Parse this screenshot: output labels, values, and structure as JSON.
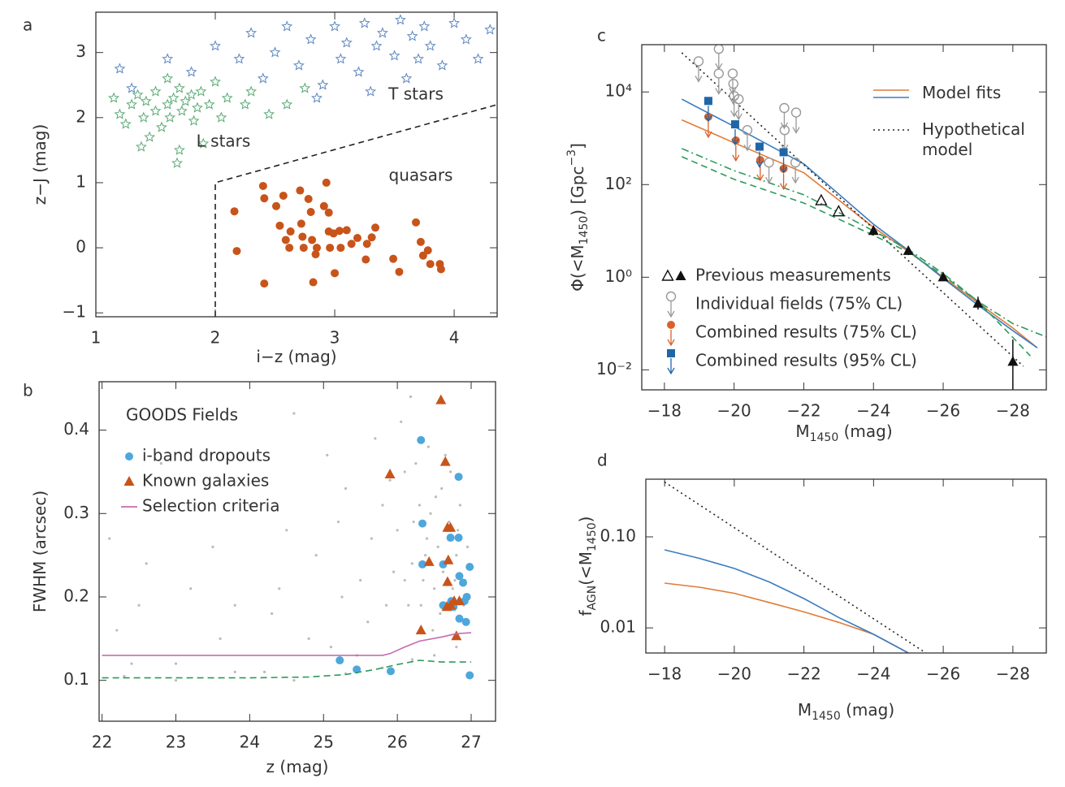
{
  "chart_data": [
    {
      "type": "scatter",
      "panel": "a",
      "xlabel": [
        "i−z (mag)"
      ],
      "ylabel": [
        "z−J (mag)"
      ],
      "xlim": [
        1,
        4.36
      ],
      "ylim": [
        -1.06,
        3.62
      ],
      "xticks": [
        1,
        2,
        3,
        4
      ],
      "yticks": [
        {
          "value": -1,
          "label": "−1"
        },
        0,
        1,
        2,
        3
      ],
      "legend": "inline",
      "boundary": {
        "x": [
          2,
          2,
          4.36
        ],
        "y": [
          -1.06,
          1.0,
          2.2
        ],
        "color": "#222222"
      },
      "series": [
        {
          "name": "L stars",
          "color": "#5aaa74",
          "marker": "star",
          "x": [
            1.15,
            1.2,
            1.25,
            1.3,
            1.35,
            1.4,
            1.42,
            1.45,
            1.5,
            1.5,
            1.55,
            1.6,
            1.62,
            1.65,
            1.7,
            1.7,
            1.72,
            1.75,
            1.8,
            1.82,
            1.85,
            1.88,
            1.9,
            1.95,
            2.0,
            2.05,
            2.1,
            1.68,
            1.38,
            2.25,
            2.3,
            2.45,
            2.6,
            2.75,
            1.6
          ],
          "values": [
            2.3,
            2.05,
            1.9,
            2.2,
            2.35,
            2.0,
            2.25,
            1.7,
            2.1,
            2.4,
            1.85,
            2.2,
            2.0,
            2.3,
            2.45,
            1.5,
            2.1,
            2.25,
            2.35,
            1.95,
            2.15,
            2.4,
            1.6,
            2.2,
            2.55,
            2.0,
            2.3,
            1.3,
            1.55,
            2.2,
            2.4,
            2.05,
            2.2,
            2.45,
            2.6
          ]
        },
        {
          "name": "T stars",
          "color": "#5b86c0",
          "marker": "star",
          "x": [
            1.2,
            1.3,
            1.6,
            1.8,
            2.0,
            2.2,
            2.4,
            2.3,
            2.5,
            2.6,
            2.7,
            2.8,
            2.9,
            3.0,
            3.05,
            3.1,
            3.2,
            3.25,
            3.3,
            3.4,
            3.5,
            3.55,
            3.6,
            3.7,
            3.75,
            3.8,
            3.9,
            4.0,
            4.1,
            4.2,
            4.3,
            3.35,
            2.85,
            3.65
          ],
          "values": [
            2.75,
            2.45,
            2.9,
            2.7,
            3.1,
            2.9,
            2.6,
            3.3,
            3.0,
            3.4,
            2.8,
            3.2,
            2.5,
            3.4,
            2.9,
            3.15,
            2.7,
            3.45,
            2.4,
            3.3,
            2.95,
            3.5,
            2.6,
            2.9,
            3.4,
            3.1,
            2.8,
            3.45,
            3.2,
            2.9,
            3.35,
            3.1,
            2.3,
            3.25
          ]
        },
        {
          "name": "quasars",
          "color": "#c8541a",
          "marker": "circle",
          "x": [
            2.16,
            2.18,
            2.4,
            2.41,
            2.41,
            2.51,
            2.54,
            2.57,
            2.59,
            2.62,
            2.63,
            2.71,
            2.72,
            2.73,
            2.74,
            2.78,
            2.8,
            2.81,
            2.82,
            2.84,
            2.85,
            2.91,
            2.93,
            2.95,
            2.95,
            2.96,
            2.99,
            3.0,
            3.04,
            3.05,
            3.1,
            3.14,
            3.19,
            3.26,
            3.27,
            3.31,
            3.34,
            3.49,
            3.54,
            3.68,
            3.72,
            3.74,
            3.78,
            3.8,
            3.88,
            3.89
          ],
          "values": [
            0.56,
            -0.05,
            0.95,
            0.76,
            -0.55,
            0.64,
            0.34,
            0.8,
            0.12,
            0.0,
            0.25,
            0.88,
            0.37,
            0.17,
            0.0,
            0.75,
            0.55,
            0.12,
            -0.53,
            -0.1,
            0.0,
            0.64,
            1.0,
            0.54,
            0.25,
            0.0,
            0.22,
            -0.39,
            0.26,
            0.0,
            0.27,
            0.06,
            0.15,
            -0.18,
            0.06,
            0.16,
            0.31,
            -0.17,
            -0.37,
            0.39,
            0.09,
            -0.12,
            -0.04,
            -0.25,
            -0.25,
            -0.33
          ]
        }
      ]
    },
    {
      "type": "scatter",
      "panel": "b",
      "xlabel": [
        "z (mag)"
      ],
      "ylabel": [
        "FWHM (arcsec)"
      ],
      "xlim": [
        21.96,
        27.33
      ],
      "ylim": [
        0.051,
        0.458
      ],
      "xticks": [
        22,
        23,
        24,
        25,
        26,
        27
      ],
      "yticks": [
        0.1,
        0.2,
        0.3,
        0.4
      ],
      "legend": "upper left",
      "legend_title": "GOODS Fields",
      "series": [
        {
          "color": "#bbbbbb",
          "marker": "dot",
          "x": [
            22.1,
            22.4,
            22.8,
            23.2,
            23.6,
            24.0,
            24.3,
            24.6,
            24.9,
            25.1,
            25.3,
            25.5,
            25.7,
            25.85,
            26.0,
            26.1,
            26.2,
            26.3,
            26.4,
            26.5,
            26.6,
            26.7,
            26.8,
            26.9,
            22.2,
            22.6,
            23.0,
            23.4,
            23.8,
            24.2,
            24.5,
            24.8,
            25.05,
            25.25,
            25.45,
            25.65,
            25.8,
            25.95,
            26.05,
            26.15,
            26.25,
            26.35,
            26.45,
            26.55,
            26.65,
            26.75,
            26.85,
            26.95,
            22.5,
            23.5,
            24.4,
            25.2,
            25.6,
            25.9,
            26.1,
            26.22,
            26.32,
            26.42,
            26.52,
            26.62,
            26.72,
            26.82,
            26.92,
            26.18,
            26.38,
            26.58,
            26.78,
            26.48,
            22.3,
            23.0,
            23.8,
            24.6,
            25.3,
            25.8,
            26.2,
            26.5,
            26.8
          ],
          "values": [
            0.27,
            0.12,
            0.36,
            0.21,
            0.15,
            0.31,
            0.18,
            0.42,
            0.25,
            0.14,
            0.33,
            0.22,
            0.39,
            0.19,
            0.28,
            0.35,
            0.24,
            0.31,
            0.27,
            0.21,
            0.33,
            0.29,
            0.25,
            0.19,
            0.16,
            0.24,
            0.12,
            0.33,
            0.19,
            0.11,
            0.28,
            0.15,
            0.37,
            0.2,
            0.13,
            0.27,
            0.31,
            0.23,
            0.41,
            0.19,
            0.36,
            0.22,
            0.3,
            0.26,
            0.37,
            0.21,
            0.31,
            0.26,
            0.19,
            0.26,
            0.21,
            0.29,
            0.17,
            0.34,
            0.22,
            0.29,
            0.19,
            0.38,
            0.32,
            0.23,
            0.35,
            0.28,
            0.22,
            0.44,
            0.25,
            0.18,
            0.22,
            0.16,
            0.105,
            0.1,
            0.11,
            0.1,
            0.108,
            0.115,
            0.125,
            0.13,
            0.14
          ]
        },
        {
          "name": "i-band dropouts",
          "color": "#4ea7dc",
          "marker": "circle",
          "x": [
            25.22,
            25.45,
            25.91,
            26.32,
            26.34,
            26.34,
            26.62,
            26.62,
            26.72,
            26.73,
            26.83,
            26.83,
            26.84,
            26.89,
            26.91,
            26.93,
            26.94,
            26.98,
            26.98,
            26.76,
            26.84
          ],
          "values": [
            0.124,
            0.113,
            0.111,
            0.388,
            0.288,
            0.239,
            0.19,
            0.239,
            0.271,
            0.195,
            0.344,
            0.271,
            0.225,
            0.217,
            0.195,
            0.17,
            0.2,
            0.236,
            0.106,
            0.188,
            0.174
          ]
        },
        {
          "name": "Known galaxies",
          "color": "#c8541a",
          "marker": "triangle",
          "x": [
            25.9,
            26.32,
            26.43,
            26.59,
            26.65,
            26.68,
            26.69,
            26.72,
            26.68,
            26.67,
            26.77,
            26.84,
            26.8,
            26.72
          ],
          "values": [
            0.347,
            0.16,
            0.242,
            0.436,
            0.362,
            0.283,
            0.244,
            0.283,
            0.218,
            0.188,
            0.195,
            0.195,
            0.153,
            0.19
          ]
        },
        {
          "name": "Selection criteria",
          "color": "#c76bb0",
          "marker": "none",
          "dash": "solid",
          "x": [
            22,
            25.8,
            25.9,
            26.1,
            26.3,
            26.6,
            26.8,
            27
          ],
          "values": [
            0.13,
            0.13,
            0.132,
            0.14,
            0.147,
            0.152,
            0.156,
            0.157
          ]
        },
        {
          "color": "#2e9a5a",
          "marker": "none",
          "dash": "dashed",
          "x": [
            22,
            24,
            24.8,
            25.3,
            25.7,
            26.0,
            26.3,
            26.6,
            27
          ],
          "values": [
            0.103,
            0.103,
            0.104,
            0.107,
            0.113,
            0.119,
            0.124,
            0.122,
            0.122
          ]
        }
      ]
    },
    {
      "type": "line",
      "panel": "c",
      "xlabel": [
        "M",
        "1450",
        " (mag)"
      ],
      "ylabel": [
        "Φ(<M",
        "1450",
        ")  [Gpc",
        "−3",
        "]"
      ],
      "xlim": [
        -17.35,
        -28.96
      ],
      "ylim": [
        0.0037,
        105000
      ],
      "log_y": true,
      "xticks": [
        {
          "value": -18,
          "label": "−18"
        },
        {
          "value": -20,
          "label": "−20"
        },
        {
          "value": -22,
          "label": "−22"
        },
        {
          "value": -24,
          "label": "−24"
        },
        {
          "value": -26,
          "label": "−26"
        },
        {
          "value": -28,
          "label": "−28"
        }
      ],
      "yticks": [
        {
          "value": 0.01,
          "label": "10⁻²"
        },
        {
          "value": 1,
          "label": "10⁰"
        },
        {
          "value": 100,
          "label": "10²"
        },
        {
          "value": 10000,
          "label": "10⁴"
        }
      ],
      "series": [
        {
          "name": "Model fits",
          "color": "#e07b39",
          "marker": "none",
          "dash": "solid",
          "legend": "upper right",
          "x": [
            -18.5,
            -20,
            -22,
            -24,
            -25,
            -26,
            -27,
            -28,
            -28.7
          ],
          "values": [
            2500,
            800,
            180,
            12,
            3.6,
            1.0,
            0.28,
            0.08,
            0.03
          ]
        },
        {
          "color": "#3a7dc0",
          "marker": "none",
          "dash": "solid",
          "legend": "upper right",
          "x": [
            -18.5,
            -20,
            -22,
            -24,
            -25,
            -26,
            -27,
            -28,
            -28.7
          ],
          "values": [
            7000,
            1800,
            280,
            14,
            3.8,
            0.95,
            0.25,
            0.07,
            0.03
          ]
        },
        {
          "name": "Hypothetical model",
          "color": "#222222",
          "marker": "none",
          "dash": "dotted",
          "legend": "upper right",
          "x": [
            -18.5,
            -28.3
          ],
          "values": [
            70000,
            0.012
          ]
        },
        {
          "color": "#2e9a5a",
          "marker": "none",
          "dash": "dashed",
          "x": [
            -18.5,
            -20,
            -22,
            -23,
            -24,
            -25,
            -26,
            -27,
            -28,
            -28.5
          ],
          "values": [
            400,
            130,
            40,
            18,
            8,
            3.5,
            1.1,
            0.3,
            0.05,
            0.02
          ]
        },
        {
          "color": "#2e9a5a",
          "marker": "none",
          "dash": "dashdot",
          "x": [
            -18.5,
            -20,
            -22,
            -23,
            -24,
            -25,
            -26,
            -27,
            -28,
            -29
          ],
          "values": [
            600,
            200,
            60,
            25,
            10,
            4,
            1.2,
            0.3,
            0.1,
            0.05
          ]
        },
        {
          "name": "Previous measurements",
          "color": "#111111",
          "marker": "open-triangle",
          "legend": "lower left",
          "x": [
            -22.5,
            -23.0
          ],
          "values": [
            45,
            26
          ]
        },
        {
          "color": "#111111",
          "marker": "triangle",
          "legend": "lower left",
          "x": [
            -24,
            -25,
            -26,
            -27,
            -28
          ],
          "values": [
            10,
            3.7,
            1.0,
            0.27,
            0.015
          ],
          "error_low": [
            8,
            3,
            0.85,
            0.2,
            0.003
          ],
          "error_high": [
            13,
            4.6,
            1.2,
            0.38,
            0.045
          ]
        },
        {
          "name": "Individual fields (75% CL)",
          "color": "#999999",
          "marker": "open-circle",
          "limit": "upper",
          "legend": "lower left",
          "x": [
            -18.98,
            -19.56,
            -19.56,
            -19.96,
            -19.98,
            -20.0,
            -20.13,
            -20.38,
            -21.0,
            -21.44,
            -21.45,
            -21.78,
            -21.76
          ],
          "values": [
            46000,
            85000,
            25000,
            25000,
            15000,
            8200,
            7000,
            1500,
            300,
            4500,
            1500,
            3600,
            300
          ]
        },
        {
          "name": "Combined results (75% CL)",
          "color": "#d9622b",
          "marker": "circle",
          "limit": "upper",
          "legend": "lower left",
          "x": [
            -19.26,
            -20.05,
            -20.75,
            -21.42
          ],
          "values": [
            2900,
            900,
            340,
            220
          ]
        },
        {
          "name": "Combined results (95% CL)",
          "color": "#1f66a8",
          "marker": "square",
          "limit": "upper",
          "legend": "lower left",
          "x": [
            -19.26,
            -20.03,
            -20.73,
            -21.42
          ],
          "values": [
            6400,
            2000,
            660,
            500
          ]
        }
      ]
    },
    {
      "type": "line",
      "panel": "d",
      "xlabel": [
        "M",
        "1450",
        " (mag)"
      ],
      "ylabel": [
        "f",
        "AGN",
        "(<M",
        "1450",
        ")"
      ],
      "xlim": [
        -17.46,
        -28.96
      ],
      "ylim": [
        0.0053,
        0.43
      ],
      "log_y": true,
      "xticks": [
        {
          "value": -18,
          "label": "−18"
        },
        {
          "value": -20,
          "label": "−20"
        },
        {
          "value": -22,
          "label": "−22"
        },
        {
          "value": -24,
          "label": "−24"
        },
        {
          "value": -26,
          "label": "−26"
        },
        {
          "value": -28,
          "label": "−28"
        }
      ],
      "yticks": [
        0.01,
        {
          "value": 0.1,
          "label": "0.10"
        }
      ],
      "series": [
        {
          "color": "#e07b39",
          "marker": "none",
          "dash": "solid",
          "x": [
            -18,
            -19,
            -20,
            -21,
            -22,
            -23,
            -24,
            -25
          ],
          "values": [
            0.031,
            0.028,
            0.024,
            0.019,
            0.015,
            0.0115,
            0.0085,
            0.0053
          ]
        },
        {
          "color": "#3a7dc0",
          "marker": "none",
          "dash": "solid",
          "x": [
            -18,
            -19,
            -20,
            -21,
            -22,
            -23,
            -24,
            -25
          ],
          "values": [
            0.072,
            0.058,
            0.045,
            0.032,
            0.021,
            0.013,
            0.0085,
            0.0053
          ]
        },
        {
          "color": "#222222",
          "marker": "none",
          "dash": "dotted",
          "x": [
            -18,
            -25.5
          ],
          "values": [
            0.4,
            0.0053
          ]
        }
      ]
    }
  ]
}
